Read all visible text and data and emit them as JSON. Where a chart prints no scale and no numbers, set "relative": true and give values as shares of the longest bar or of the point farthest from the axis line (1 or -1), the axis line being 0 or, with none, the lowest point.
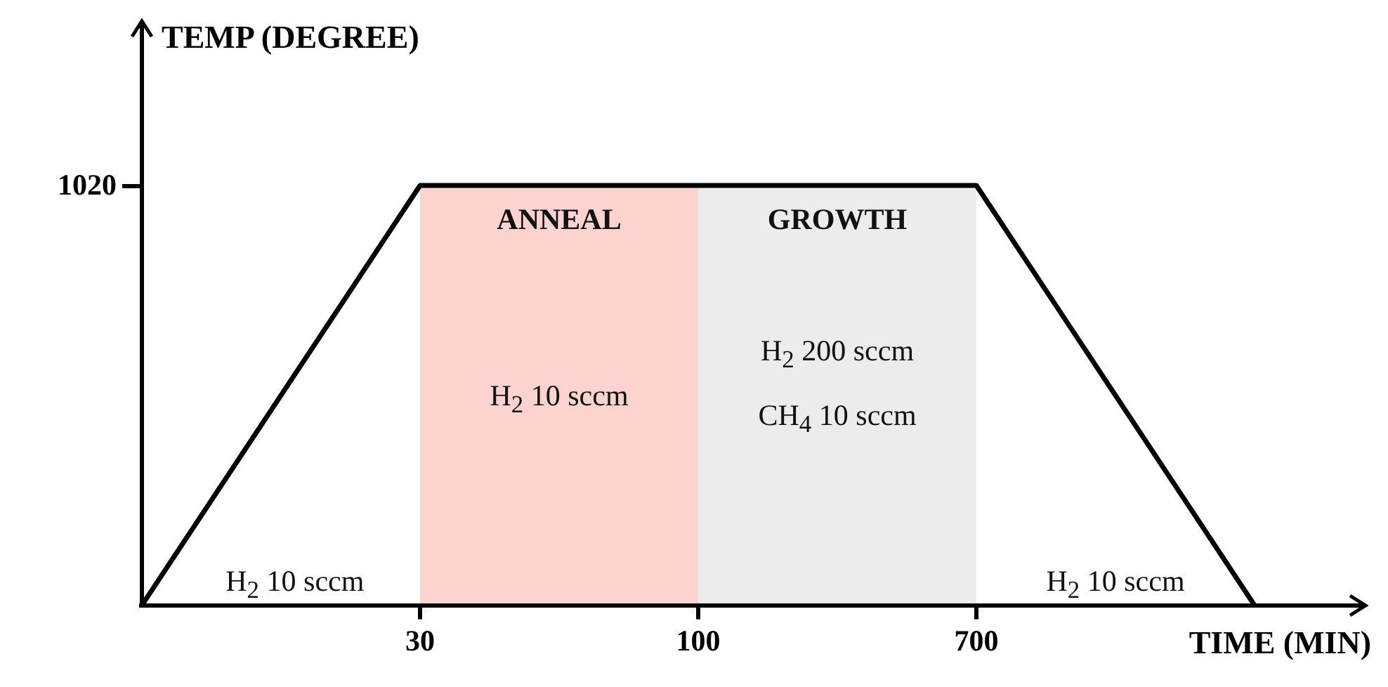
{
  "chart_data": {
    "type": "line",
    "xlabel": "TIME (MIN)",
    "ylabel": "TEMP (DEGREE)",
    "categories": [
      null,
      "30",
      "100",
      "700",
      null
    ],
    "values": [
      0,
      1,
      1,
      1,
      0
    ],
    "color": "#000000",
    "relative": true,
    "grid": false,
    "legend": false,
    "bands": [
      {
        "axis": "x",
        "from": "30",
        "to": "100",
        "label": "ANNEAL",
        "color": "#fcd3ce"
      },
      {
        "axis": "x",
        "from": "100",
        "to": "700",
        "label": "GROWTH",
        "color": "#ececec"
      }
    ],
    "annotations": [
      "H$_{2}$  10 sccm",
      "H$_{2}$  10 sccm",
      "H$_{2}$  200 sccm",
      "CH$_{4}$  10 sccm",
      "H$_{2}$  10 sccm",
      "1020"
    ]
  }
}
